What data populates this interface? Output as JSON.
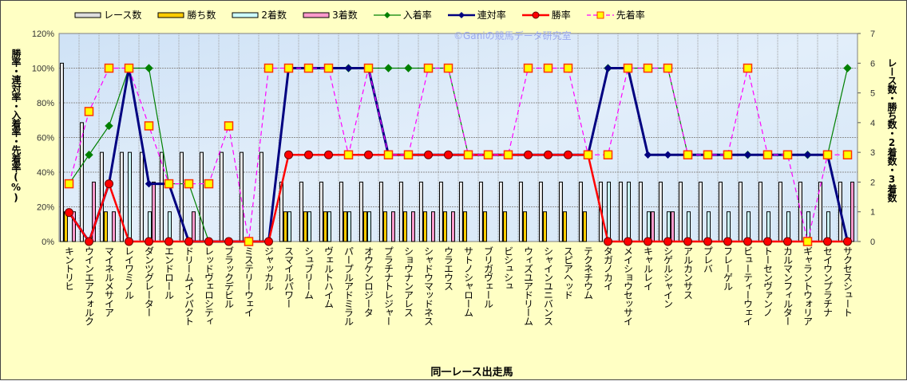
{
  "chart_data": {
    "type": "bar+line",
    "title": "",
    "watermark": "©Ganiの競馬データ研究室",
    "xlabel": "同一レース出走馬",
    "ylabel_left": "勝率・連対率・入着率・先着率(%)",
    "ylabel_right": "レース数・勝ち数・2着数・3着数",
    "ylim_left": [
      0,
      120
    ],
    "yticks_left": [
      "0%",
      "20%",
      "40%",
      "60%",
      "80%",
      "100%",
      "120%"
    ],
    "ylim_right": [
      0,
      7
    ],
    "yticks_right": [
      "0",
      "1",
      "2",
      "3",
      "4",
      "5",
      "6",
      "7"
    ],
    "legend_position": "top",
    "grid": true,
    "categories": [
      "キントリヒ",
      "ウインエアフォルク",
      "マイネルメサイア",
      "レイワミノル",
      "ダンツグレーター",
      "エンドロール",
      "ドリームインパクト",
      "レッドヴェロシティ",
      "ブラックデビル",
      "ミステリーウェイ",
      "ジャッカル",
      "スマイルパワー",
      "シュブリーム",
      "ヴェルトハイム",
      "パープルアドミラル",
      "オウケンロジータ",
      "プラチナトレジャー",
      "ショウナンアレス",
      "シャドウマッドネス",
      "ウラエウス",
      "サトノシャローム",
      "ブリガヴェール",
      "ビシュシュ",
      "ウィズユアドリーム",
      "シャインユニバンス",
      "スピアヘッド",
      "テクネチウム",
      "タガノカイ",
      "メイショウセッサイ",
      "キャルレイ",
      "シゲルシャイン",
      "アルカンサス",
      "プレバ",
      "フレーゲル",
      "ビューティーウェイ",
      "トーセンヴァンノ",
      "カルマンフィルター",
      "ギャラントウォリア",
      "セイウンプラチナ",
      "サクセスシュート"
    ],
    "bar_series": [
      {
        "name": "レース数",
        "color": "#FFFFFF",
        "axis": "right",
        "values": [
          6,
          4,
          3,
          3,
          3,
          3,
          3,
          3,
          3,
          3,
          3,
          2,
          2,
          2,
          2,
          2,
          2,
          2,
          2,
          2,
          2,
          2,
          2,
          2,
          2,
          2,
          2,
          2,
          2,
          2,
          2,
          2,
          2,
          2,
          2,
          2,
          2,
          2,
          2,
          2
        ]
      },
      {
        "name": "勝ち数",
        "color": "#FFCC00",
        "axis": "right",
        "values": [
          1,
          0,
          1,
          0,
          0,
          0,
          0,
          0,
          0,
          0,
          0,
          1,
          1,
          1,
          1,
          1,
          1,
          1,
          1,
          1,
          1,
          1,
          1,
          1,
          1,
          1,
          1,
          0,
          0,
          0,
          0,
          0,
          0,
          0,
          0,
          0,
          0,
          0,
          0,
          0
        ]
      },
      {
        "name": "2着数",
        "color": "#CCFFFF",
        "axis": "right",
        "values": [
          0,
          0,
          0,
          3,
          1,
          1,
          0,
          0,
          0,
          0,
          0,
          1,
          1,
          1,
          1,
          1,
          0,
          0,
          0,
          0,
          0,
          0,
          0,
          0,
          0,
          0,
          0,
          2,
          2,
          1,
          1,
          1,
          1,
          1,
          1,
          1,
          1,
          1,
          1,
          0
        ]
      },
      {
        "name": "3着数",
        "color": "#FF99CC",
        "axis": "right",
        "values": [
          1,
          2,
          1,
          0,
          2,
          0,
          1,
          0,
          0,
          0,
          0,
          0,
          0,
          0,
          0,
          0,
          1,
          1,
          1,
          1,
          0,
          0,
          0,
          0,
          0,
          0,
          0,
          0,
          0,
          1,
          1,
          0,
          0,
          0,
          0,
          0,
          0,
          0,
          0,
          2
        ]
      }
    ],
    "line_series": [
      {
        "name": "入着率",
        "color": "#008000",
        "marker": "diamond",
        "axis": "left",
        "values": [
          33.3,
          50,
          66.7,
          100,
          100,
          33.3,
          33.3,
          0,
          0,
          0,
          0,
          100,
          100,
          100,
          100,
          100,
          100,
          100,
          100,
          100,
          50,
          50,
          50,
          50,
          50,
          50,
          50,
          100,
          100,
          100,
          100,
          50,
          50,
          50,
          50,
          50,
          50,
          50,
          50,
          100
        ]
      },
      {
        "name": "連対率",
        "color": "#000080",
        "marker": "diamond",
        "axis": "left",
        "values": [
          16.7,
          0,
          33.3,
          100,
          33.3,
          33.3,
          0,
          0,
          0,
          0,
          0,
          100,
          100,
          100,
          100,
          100,
          50,
          50,
          50,
          50,
          50,
          50,
          50,
          50,
          50,
          50,
          50,
          100,
          100,
          50,
          50,
          50,
          50,
          50,
          50,
          50,
          50,
          50,
          50,
          0
        ]
      },
      {
        "name": "勝率",
        "color": "#FF0000",
        "marker": "circle",
        "axis": "left",
        "values": [
          16.7,
          0,
          33.3,
          0,
          0,
          0,
          0,
          0,
          0,
          0,
          0,
          50,
          50,
          50,
          50,
          50,
          50,
          50,
          50,
          50,
          50,
          50,
          50,
          50,
          50,
          50,
          50,
          0,
          0,
          0,
          0,
          0,
          0,
          0,
          0,
          0,
          0,
          0,
          0,
          0
        ]
      },
      {
        "name": "先着率",
        "color": "#FF00FF",
        "marker": "square",
        "axis": "left",
        "dashed": true,
        "values": [
          33.3,
          75,
          100,
          100,
          66.7,
          33.3,
          33.3,
          33.3,
          66.7,
          0,
          100,
          100,
          100,
          100,
          50,
          100,
          50,
          50,
          100,
          100,
          50,
          50,
          50,
          100,
          100,
          100,
          50,
          50,
          100,
          100,
          100,
          50,
          50,
          50,
          100,
          50,
          50,
          0,
          50,
          50
        ]
      }
    ]
  }
}
